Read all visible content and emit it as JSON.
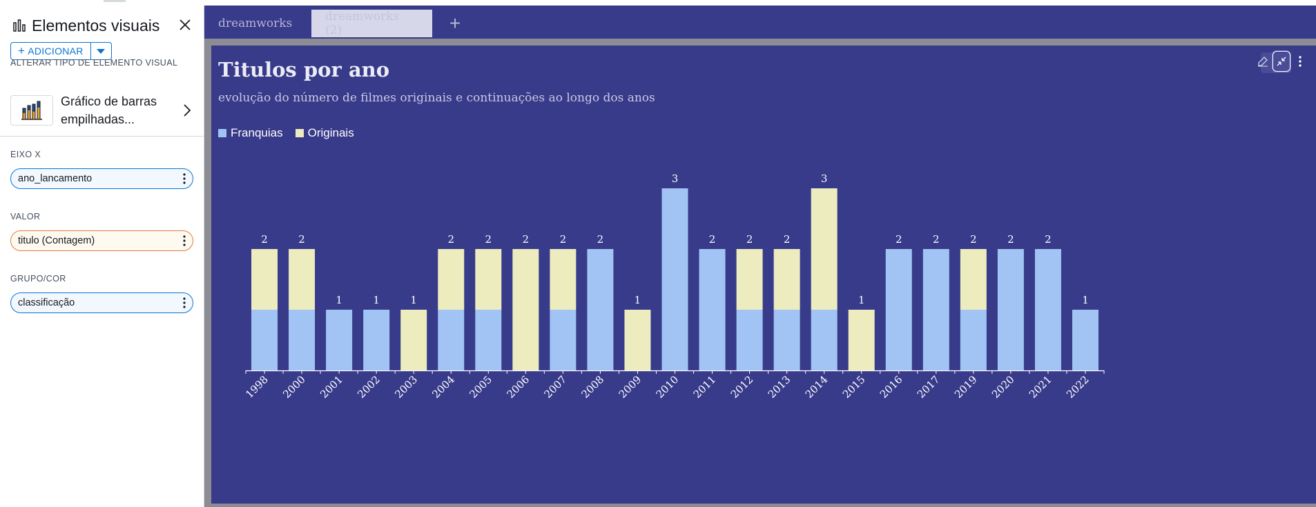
{
  "panel": {
    "title": "Elementos visuais",
    "add_label": "ADICIONAR",
    "change_type_label": "ALTERAR TIPO DE ELEMENTO VISUAL",
    "chart_type_line1": "Gráfico de barras",
    "chart_type_line2": "empilhadas...",
    "x_axis_label": "EIXO X",
    "x_axis_field": "ano_lancamento",
    "value_label": "VALOR",
    "value_field": "titulo (Contagem)",
    "group_label": "GRUPO/COR",
    "group_field": "classificação"
  },
  "tabs": [
    {
      "label": "dreamworks"
    },
    {
      "label": "dreamworks (2)"
    }
  ],
  "colors": {
    "franquias": "#a2c4f4",
    "originais": "#ececbf",
    "background": "#383a8a"
  },
  "chart_data": {
    "type": "bar",
    "stacked": true,
    "title": "Titulos por ano",
    "subtitle": "evolução do número de filmes originais e continuações ao longo dos anos",
    "categories": [
      "1998",
      "2000",
      "2001",
      "2002",
      "2003",
      "2004",
      "2005",
      "2006",
      "2007",
      "2008",
      "2009",
      "2010",
      "2011",
      "2012",
      "2013",
      "2014",
      "2015",
      "2016",
      "2017",
      "2019",
      "2020",
      "2021",
      "2022"
    ],
    "series": [
      {
        "name": "Franquias",
        "values": [
          1,
          1,
          1,
          1,
          0,
          1,
          1,
          0,
          1,
          2,
          0,
          3,
          2,
          1,
          1,
          1,
          0,
          2,
          2,
          1,
          2,
          2,
          1
        ]
      },
      {
        "name": "Originais",
        "values": [
          1,
          1,
          0,
          0,
          1,
          1,
          1,
          2,
          1,
          0,
          1,
          0,
          0,
          1,
          1,
          2,
          1,
          0,
          0,
          1,
          0,
          0,
          0
        ]
      }
    ],
    "totals": [
      2,
      2,
      1,
      1,
      1,
      2,
      2,
      2,
      2,
      2,
      1,
      3,
      2,
      2,
      2,
      3,
      1,
      2,
      2,
      2,
      2,
      2,
      1
    ],
    "ylim": [
      0,
      3
    ],
    "legend": "top-left",
    "grid": false
  }
}
